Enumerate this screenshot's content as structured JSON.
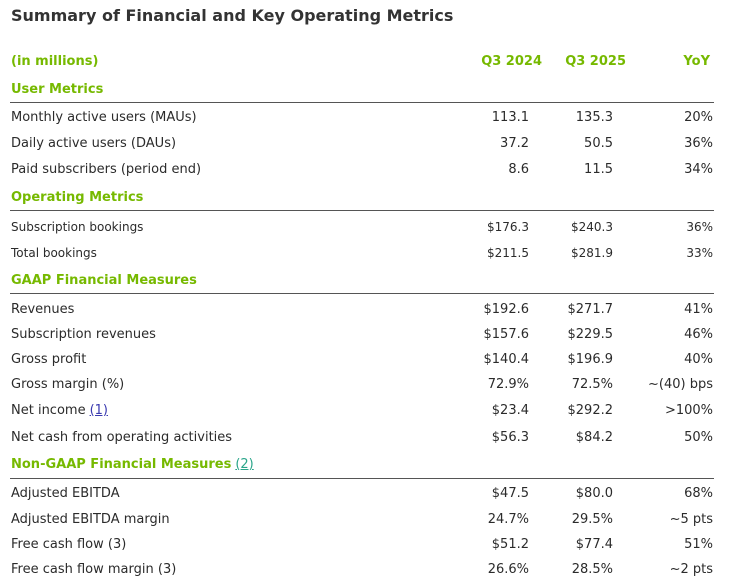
{
  "title": "Summary of Financial and Key Operating Metrics",
  "header": {
    "units": "(in millions)",
    "col1": "Q3 2024",
    "col2": "Q3 2025",
    "col3": "YoY"
  },
  "sections": {
    "user": {
      "title": "User Metrics",
      "rows": [
        {
          "label": "Monthly active users (MAUs)",
          "q3_2024": "113.1",
          "q3_2025": "135.3",
          "yoy": "20%"
        },
        {
          "label": "Daily active users (DAUs)",
          "q3_2024": "37.2",
          "q3_2025": "50.5",
          "yoy": "36%"
        },
        {
          "label": "Paid subscribers (period end)",
          "q3_2024": "8.6",
          "q3_2025": "11.5",
          "yoy": "34%"
        }
      ]
    },
    "operating": {
      "title": "Operating Metrics",
      "rows": [
        {
          "label": "Subscription bookings",
          "q3_2024": "$176.3",
          "q3_2025": "$240.3",
          "yoy": "36%"
        },
        {
          "label": "Total bookings",
          "q3_2024": "$211.5",
          "q3_2025": "$281.9",
          "yoy": "33%"
        }
      ]
    },
    "gaap": {
      "title": "GAAP Financial Measures",
      "rows": [
        {
          "label": "Revenues",
          "q3_2024": "$192.6",
          "q3_2025": "$271.7",
          "yoy": "41%"
        },
        {
          "label": "Subscription revenues",
          "q3_2024": "$157.6",
          "q3_2025": "$229.5",
          "yoy": "46%"
        },
        {
          "label": "Gross profit",
          "q3_2024": "$140.4",
          "q3_2025": "$196.9",
          "yoy": "40%"
        },
        {
          "label": "Gross margin (%)",
          "q3_2024": "72.9%",
          "q3_2025": "72.5%",
          "yoy": "~(40) bps"
        },
        {
          "label": "Net income",
          "footnote": "(1)",
          "q3_2024": "$23.4",
          "q3_2025": "$292.2",
          "yoy": ">100%"
        },
        {
          "label": "Net cash from operating activities",
          "q3_2024": "$56.3",
          "q3_2025": "$84.2",
          "yoy": "50%"
        }
      ]
    },
    "nongaap": {
      "title": "Non-GAAP Financial Measures",
      "footnote": "(2)",
      "rows": [
        {
          "label": "Adjusted EBITDA",
          "q3_2024": "$47.5",
          "q3_2025": "$80.0",
          "yoy": "68%"
        },
        {
          "label": "Adjusted EBITDA margin",
          "q3_2024": "24.7%",
          "q3_2025": "29.5%",
          "yoy": "~5 pts"
        },
        {
          "label": "Free cash flow (3)",
          "q3_2024": "$51.2",
          "q3_2025": "$77.4",
          "yoy": "51%"
        },
        {
          "label": "Free cash flow margin (3)",
          "q3_2024": "26.6%",
          "q3_2025": "28.5%",
          "yoy": "~2 pts"
        }
      ]
    }
  }
}
